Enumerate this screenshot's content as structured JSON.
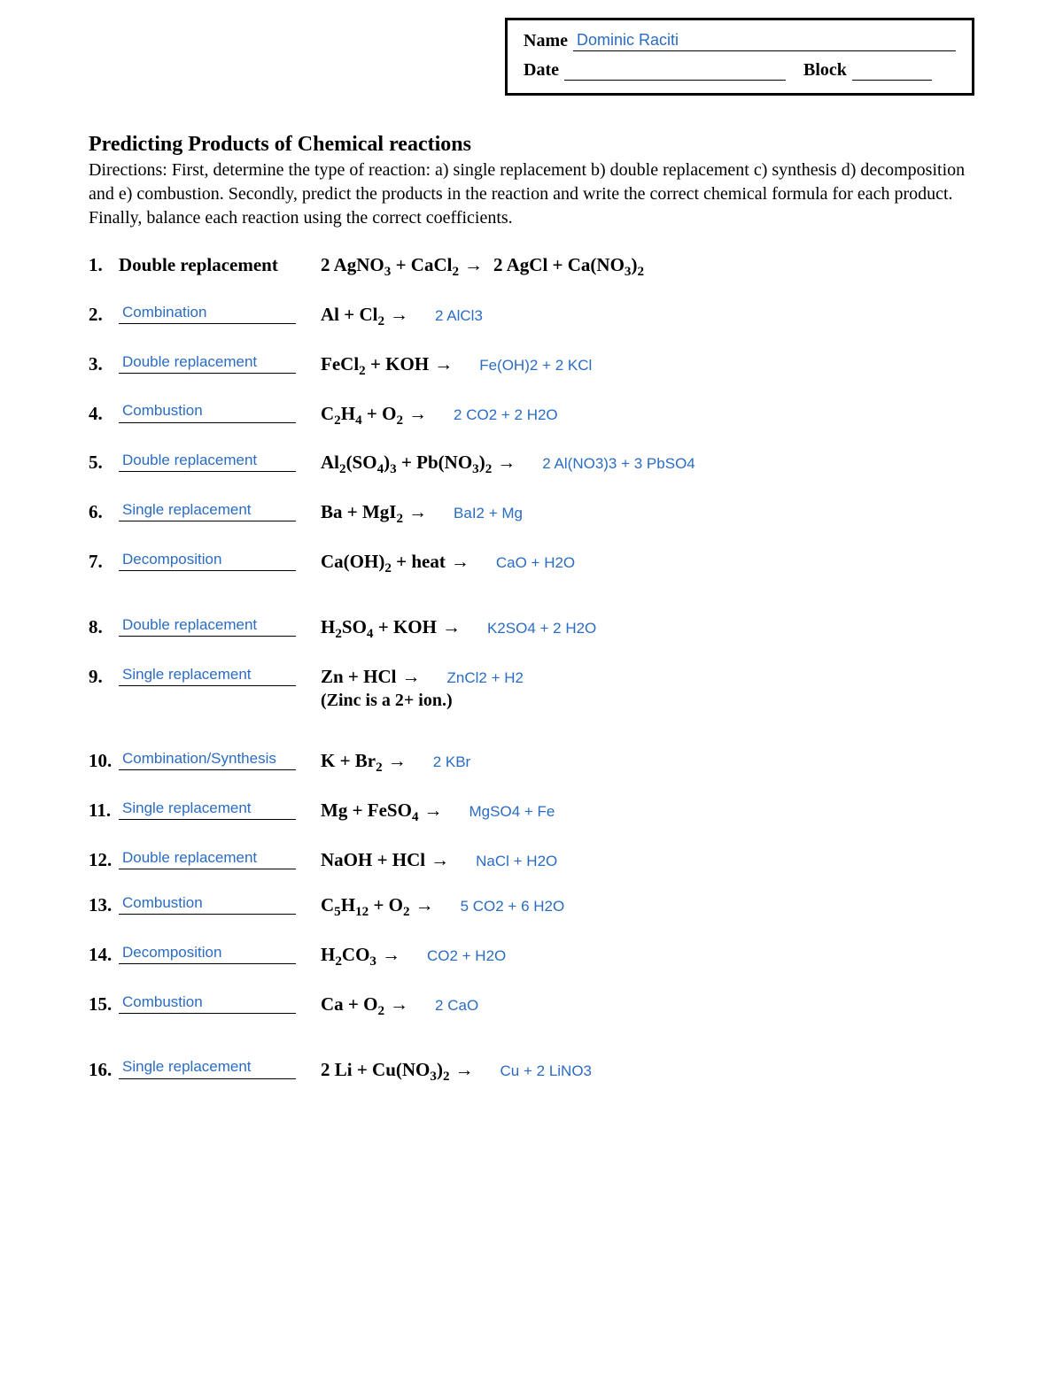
{
  "header": {
    "name_label": "Name",
    "student_name": "Dominic Raciti",
    "date_label": "Date",
    "block_label": "Block"
  },
  "title": "Predicting Products of Chemical reactions",
  "directions": "Directions: First, determine the type of reaction: a) single replacement b) double replacement c) synthesis d) decomposition and e) combustion. Secondly, predict the products in the reaction and write the correct chemical formula for each product. Finally, balance each reaction using the correct coefficients.",
  "colors": {
    "answer_color": "#2a6cc4",
    "text_color": "#000000",
    "background": "#ffffff"
  },
  "problems": [
    {
      "num": "1.",
      "type_text": "Double replacement",
      "type_is_printed": true,
      "reactants_html": "2 AgNO<sub>3</sub>  + CaCl<sub>2</sub>",
      "arrow": "→",
      "products_html": "2 AgCl + Ca(NO<sub>3</sub>)<sub>2</sub>",
      "products_printed": true
    },
    {
      "num": "2.",
      "type_text": "Combination",
      "reactants_html": "Al  + Cl<sub>2</sub>",
      "arrow": "→",
      "products_html": "2 AlCl3"
    },
    {
      "num": "3.",
      "type_text": "Double replacement",
      "reactants_html": "FeCl<sub>2</sub>  + KOH",
      "arrow": "→",
      "products_html": "Fe(OH)2 + 2 KCl"
    },
    {
      "num": "4.",
      "type_text": "Combustion",
      "reactants_html": "C<sub>2</sub>H<sub>4</sub>  + O<sub>2</sub>",
      "arrow": "→",
      "products_html": "2 CO2 + 2 H2O"
    },
    {
      "num": "5.",
      "type_text": "Double replacement",
      "reactants_html": "Al<sub>2</sub>(SO<sub>4</sub>)<sub>3</sub>  + Pb(NO<sub>3</sub>)<sub>2</sub>",
      "arrow": "→",
      "products_html": "2 Al(NO3)3 + 3 PbSO4"
    },
    {
      "num": "6.",
      "type_text": "Single replacement",
      "reactants_html": "Ba  + MgI<sub>2</sub>",
      "arrow": "→",
      "products_html": "BaI2 + Mg"
    },
    {
      "num": "7.",
      "type_text": "Decomposition",
      "reactants_html": "Ca(OH)<sub>2</sub>  + heat",
      "arrow": "→",
      "products_html": "CaO + H2O",
      "gap_after": true
    },
    {
      "num": "8.",
      "type_text": "Double replacement",
      "reactants_html": "H<sub>2</sub>SO<sub>4</sub>  + KOH",
      "arrow": "→",
      "products_html": "K2SO4 + 2 H2O"
    },
    {
      "num": "9.",
      "type_text": "Single replacement",
      "reactants_html": "Zn  + HCl",
      "arrow": "→",
      "products_html": "ZnCl2 + H2",
      "subnote": "(Zinc is a 2+ ion.)",
      "gap_after": true
    },
    {
      "num": "10.",
      "type_text": "Combination/Synthesis",
      "reactants_html": "K  + Br<sub>2</sub>",
      "arrow": "→",
      "products_html": "2 KBr"
    },
    {
      "num": "11.",
      "type_text": "Single replacement",
      "reactants_html": "Mg  + FeSO<sub>4</sub>",
      "arrow": "→",
      "products_html": "MgSO4 + Fe"
    },
    {
      "num": "12.",
      "type_text": "Double replacement",
      "reactants_html": "NaOH  + HCl",
      "arrow": "→",
      "products_html": "NaCl + H2O"
    },
    {
      "num": "13.",
      "type_text": "Combustion",
      "reactants_html": "C<sub>5</sub>H<sub>12</sub>  + O<sub>2</sub>",
      "arrow": "→",
      "products_html": "5 CO2 + 6 H2O"
    },
    {
      "num": "14.",
      "type_text": "Decomposition",
      "reactants_html": "H<sub>2</sub>CO<sub>3</sub>",
      "arrow": "→",
      "products_html": "CO2 + H2O"
    },
    {
      "num": "15.",
      "type_text": "Combustion",
      "reactants_html": "Ca  + O<sub>2</sub>",
      "arrow": "→",
      "products_html": "2 CaO",
      "gap_after": true
    },
    {
      "num": "16.",
      "type_text": "Single replacement",
      "reactants_html": "2 Li  + Cu(NO<sub>3</sub>)<sub>2</sub>",
      "arrow": "→",
      "products_html": "Cu + 2 LiNO3"
    }
  ]
}
